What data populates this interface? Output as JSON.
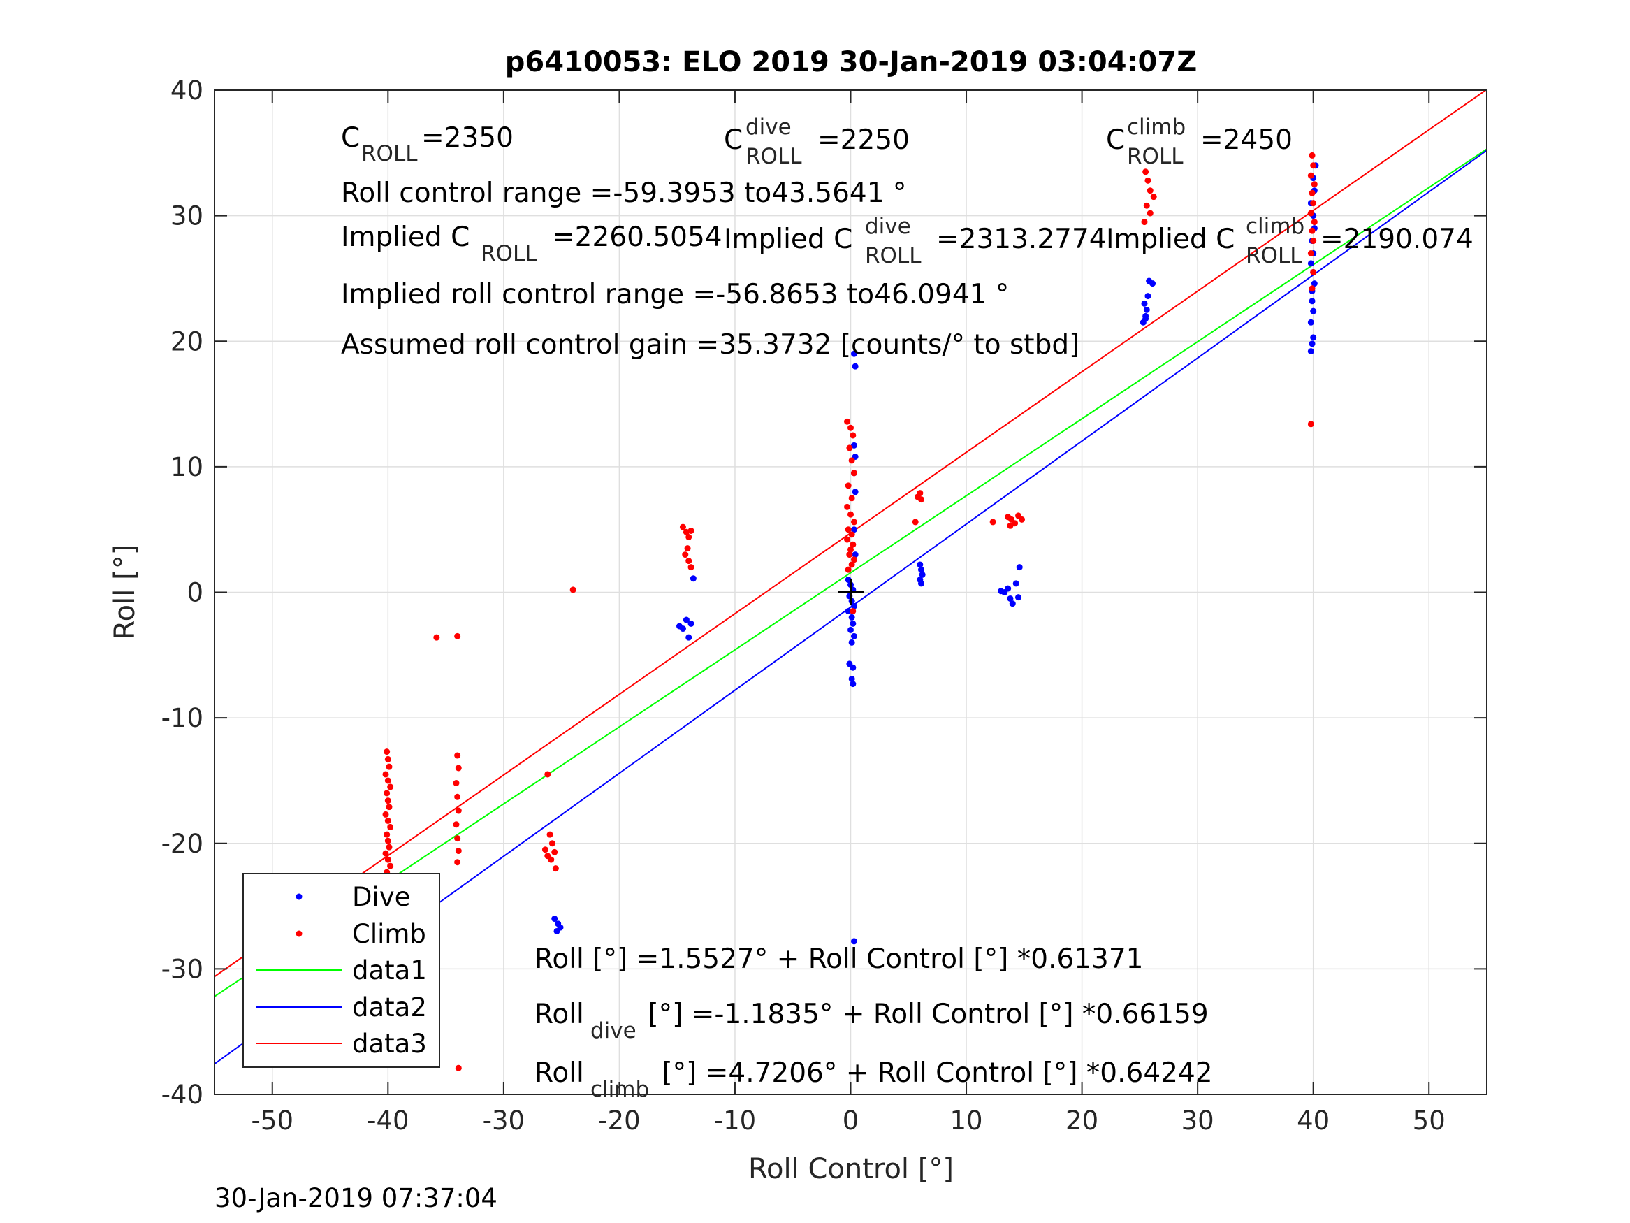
{
  "chart_data": {
    "type": "scatter",
    "title": "p6410053: ELO 2019 30-Jan-2019 03:04:07Z",
    "xlabel": "Roll Control [°]",
    "ylabel": "Roll [°]",
    "xlim": [
      -55,
      55
    ],
    "ylim": [
      -40,
      40
    ],
    "xticks": [
      "-50",
      "-40",
      "-30",
      "-20",
      "-10",
      "0",
      "10",
      "20",
      "30",
      "40",
      "50"
    ],
    "yticks": [
      "-40",
      "-30",
      "-20",
      "-10",
      "0",
      "10",
      "20",
      "30",
      "40"
    ],
    "grid": true,
    "legend_placement": "bottom-left",
    "footer": "30-Jan-2019 07:37:04",
    "annotations": {
      "c_roll_main": "C",
      "c_roll_sub": "ROLL",
      "c_roll_val": "=2350",
      "c_dive_main": "C",
      "c_dive_sup": "dive",
      "c_dive_sub": "ROLL",
      "c_dive_val": "=2250",
      "c_climb_main": "C",
      "c_climb_sup": "climb",
      "c_climb_sub": "ROLL",
      "c_climb_val": "=2450",
      "range": "Roll control range =-59.3953 to43.5641 °",
      "implied_c_pre": "Implied C",
      "implied_c_sub": "ROLL",
      "implied_c_val": "=2260.5054",
      "implied_dive_pre": "Implied C",
      "implied_dive_sup": "dive",
      "implied_dive_sub": "ROLL",
      "implied_dive_val": "=2313.2774",
      "implied_climb_pre": "Implied C",
      "implied_climb_sup": "climb",
      "implied_climb_sub": "ROLL",
      "implied_climb_val": "=2190.074",
      "implied_range": "Implied roll control range =-56.8653 to46.0941 °",
      "gain": "Assumed roll control gain =35.3732 [counts/° to stbd]",
      "fit_all": "Roll [°] =1.5527° + Roll Control [°] *0.61371",
      "fit_dive_pre": "Roll",
      "fit_dive_sub": "dive",
      "fit_dive_post": " [°] =-1.1835° + Roll Control [°] *0.66159",
      "fit_climb_pre": "Roll",
      "fit_climb_sub": "climb",
      "fit_climb_post": " [°] =4.7206° + Roll Control [°] *0.64242"
    },
    "colors": {
      "dive": "#0000ff",
      "climb": "#ff0000",
      "data1": "#00ff00",
      "data2": "#0000ff",
      "data3": "#ff0000"
    },
    "series": [
      {
        "name": "Dive",
        "kind": "points",
        "color": "#0000ff",
        "points": [
          [
            -40.1,
            -26.0
          ],
          [
            -40.0,
            -26.6
          ],
          [
            -39.9,
            -27.1
          ],
          [
            -40.1,
            -27.6
          ],
          [
            -40.0,
            -28.0
          ],
          [
            -39.9,
            -28.4
          ],
          [
            -40.0,
            -28.8
          ],
          [
            -39.8,
            -29.2
          ],
          [
            -40.0,
            -29.6
          ],
          [
            -40.1,
            -28.2
          ],
          [
            -25.6,
            -26.0
          ],
          [
            -25.3,
            -26.4
          ],
          [
            -25.1,
            -26.7
          ],
          [
            -25.4,
            -27.0
          ],
          [
            -14.8,
            -2.7
          ],
          [
            -14.5,
            -2.9
          ],
          [
            -14.2,
            -2.2
          ],
          [
            -14.0,
            -3.6
          ],
          [
            -13.8,
            -2.5
          ],
          [
            -13.6,
            1.1
          ],
          [
            -0.2,
            1.0
          ],
          [
            0.0,
            0.6
          ],
          [
            0.2,
            0.2
          ],
          [
            -0.1,
            -0.3
          ],
          [
            0.1,
            -0.7
          ],
          [
            0.3,
            -1.1
          ],
          [
            -0.2,
            -1.5
          ],
          [
            0.1,
            -2.0
          ],
          [
            0.2,
            -2.5
          ],
          [
            0.0,
            -3.0
          ],
          [
            0.3,
            -3.5
          ],
          [
            0.1,
            -4.0
          ],
          [
            -0.1,
            -5.7
          ],
          [
            0.2,
            -6.0
          ],
          [
            0.1,
            -6.9
          ],
          [
            0.2,
            -7.3
          ],
          [
            0.4,
            3.0
          ],
          [
            0.3,
            5.0
          ],
          [
            0.4,
            8.0
          ],
          [
            0.3,
            9.5
          ],
          [
            0.4,
            10.8
          ],
          [
            0.3,
            11.7
          ],
          [
            0.4,
            18.0
          ],
          [
            0.3,
            19.0
          ],
          [
            0.3,
            -27.8
          ],
          [
            6.0,
            2.2
          ],
          [
            6.1,
            1.8
          ],
          [
            6.2,
            1.4
          ],
          [
            6.0,
            1.0
          ],
          [
            6.1,
            0.7
          ],
          [
            13.0,
            0.1
          ],
          [
            13.3,
            0.0
          ],
          [
            13.6,
            0.3
          ],
          [
            13.8,
            -0.5
          ],
          [
            14.0,
            -0.9
          ],
          [
            14.3,
            0.7
          ],
          [
            14.5,
            -0.4
          ],
          [
            14.6,
            2.0
          ],
          [
            25.3,
            21.5
          ],
          [
            25.5,
            22.0
          ],
          [
            25.6,
            22.5
          ],
          [
            25.4,
            23.0
          ],
          [
            25.7,
            23.6
          ],
          [
            25.5,
            21.8
          ],
          [
            25.8,
            24.8
          ],
          [
            26.1,
            24.6
          ],
          [
            39.8,
            19.2
          ],
          [
            39.9,
            19.8
          ],
          [
            40.0,
            20.3
          ],
          [
            39.8,
            21.5
          ],
          [
            40.0,
            22.4
          ],
          [
            39.9,
            23.2
          ],
          [
            39.9,
            24.0
          ],
          [
            40.1,
            24.6
          ],
          [
            40.0,
            25.5
          ],
          [
            39.8,
            26.2
          ],
          [
            40.0,
            27.0
          ],
          [
            39.9,
            28.0
          ],
          [
            40.1,
            29.0
          ],
          [
            40.0,
            30.0
          ],
          [
            39.8,
            31.0
          ],
          [
            40.1,
            32.0
          ],
          [
            40.0,
            33.0
          ],
          [
            40.2,
            34.0
          ]
        ]
      },
      {
        "name": "Climb",
        "kind": "points",
        "color": "#ff0000",
        "points": [
          [
            -40.1,
            -12.7
          ],
          [
            -40.0,
            -13.3
          ],
          [
            -39.9,
            -13.9
          ],
          [
            -40.2,
            -14.5
          ],
          [
            -40.0,
            -15.0
          ],
          [
            -39.8,
            -15.5
          ],
          [
            -40.1,
            -16.0
          ],
          [
            -40.0,
            -16.6
          ],
          [
            -39.9,
            -17.1
          ],
          [
            -40.2,
            -17.7
          ],
          [
            -40.0,
            -18.2
          ],
          [
            -39.8,
            -18.7
          ],
          [
            -40.1,
            -19.3
          ],
          [
            -40.0,
            -19.8
          ],
          [
            -39.9,
            -20.3
          ],
          [
            -40.2,
            -20.8
          ],
          [
            -40.0,
            -21.3
          ],
          [
            -39.8,
            -21.8
          ],
          [
            -40.1,
            -22.3
          ],
          [
            -40.0,
            -22.8
          ],
          [
            -39.9,
            -23.4
          ],
          [
            -40.1,
            -24.2
          ],
          [
            -39.8,
            -25.2
          ],
          [
            -35.8,
            -3.6
          ],
          [
            -34.0,
            -3.5
          ],
          [
            -34.0,
            -13.0
          ],
          [
            -33.9,
            -14.0
          ],
          [
            -34.1,
            -15.2
          ],
          [
            -34.0,
            -16.3
          ],
          [
            -33.9,
            -17.4
          ],
          [
            -34.1,
            -18.5
          ],
          [
            -34.0,
            -19.6
          ],
          [
            -33.9,
            -20.6
          ],
          [
            -34.0,
            -21.5
          ],
          [
            -33.9,
            -37.9
          ],
          [
            -26.2,
            -14.5
          ],
          [
            -26.0,
            -19.3
          ],
          [
            -25.8,
            -20.0
          ],
          [
            -25.6,
            -20.7
          ],
          [
            -25.9,
            -21.3
          ],
          [
            -25.5,
            -22.0
          ],
          [
            -26.2,
            -21.0
          ],
          [
            -26.4,
            -20.5
          ],
          [
            -24.0,
            0.2
          ],
          [
            -14.5,
            5.2
          ],
          [
            -14.2,
            4.8
          ],
          [
            -14.0,
            4.4
          ],
          [
            -13.8,
            4.9
          ],
          [
            -14.3,
            3.0
          ],
          [
            -14.0,
            2.5
          ],
          [
            -13.8,
            2.0
          ],
          [
            -14.1,
            3.5
          ],
          [
            -0.3,
            13.6
          ],
          [
            0.0,
            13.1
          ],
          [
            0.2,
            12.5
          ],
          [
            -0.1,
            11.5
          ],
          [
            0.1,
            10.5
          ],
          [
            0.3,
            9.5
          ],
          [
            -0.2,
            8.5
          ],
          [
            0.1,
            7.5
          ],
          [
            -0.3,
            6.8
          ],
          [
            0.0,
            6.2
          ],
          [
            0.3,
            5.6
          ],
          [
            -0.2,
            5.0
          ],
          [
            0.1,
            4.6
          ],
          [
            -0.3,
            4.2
          ],
          [
            0.2,
            3.8
          ],
          [
            0.0,
            3.4
          ],
          [
            -0.1,
            3.0
          ],
          [
            0.3,
            2.6
          ],
          [
            0.1,
            2.2
          ],
          [
            -0.2,
            1.8
          ],
          [
            0.2,
            -1.5
          ],
          [
            5.6,
            5.6
          ],
          [
            5.8,
            7.6
          ],
          [
            6.0,
            7.9
          ],
          [
            6.1,
            7.4
          ],
          [
            12.3,
            5.6
          ],
          [
            13.6,
            6.0
          ],
          [
            13.9,
            5.8
          ],
          [
            14.2,
            5.5
          ],
          [
            14.5,
            6.1
          ],
          [
            14.8,
            5.8
          ],
          [
            13.8,
            5.3
          ],
          [
            25.5,
            33.5
          ],
          [
            25.7,
            32.8
          ],
          [
            25.9,
            32.0
          ],
          [
            26.2,
            31.5
          ],
          [
            25.6,
            30.8
          ],
          [
            25.9,
            30.2
          ],
          [
            25.4,
            29.5
          ],
          [
            39.9,
            34.8
          ],
          [
            40.0,
            34.0
          ],
          [
            39.8,
            33.2
          ],
          [
            40.1,
            32.5
          ],
          [
            39.9,
            31.8
          ],
          [
            40.0,
            31.0
          ],
          [
            39.8,
            30.2
          ],
          [
            40.1,
            29.5
          ],
          [
            39.9,
            28.8
          ],
          [
            40.0,
            28.0
          ],
          [
            39.8,
            27.0
          ],
          [
            40.0,
            25.5
          ],
          [
            39.9,
            24.2
          ],
          [
            39.8,
            13.4
          ]
        ]
      },
      {
        "name": "data1",
        "kind": "line",
        "color": "#00ff00",
        "intercept": 1.5527,
        "slope": 0.61371
      },
      {
        "name": "data2",
        "kind": "line",
        "color": "#0000ff",
        "intercept": -1.1835,
        "slope": 0.66159
      },
      {
        "name": "data3",
        "kind": "line",
        "color": "#ff0000",
        "intercept": 4.7206,
        "slope": 0.64242
      }
    ]
  }
}
